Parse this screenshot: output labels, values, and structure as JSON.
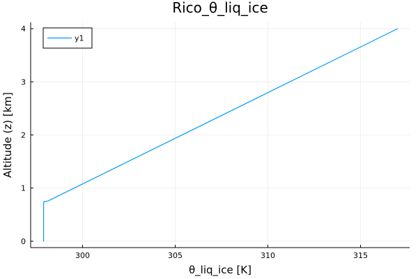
{
  "chart_data": {
    "type": "line",
    "title": "Rico_θ_liq_ice",
    "xlabel": "θ_liq_ice [K]",
    "ylabel": "Altitude (z) [km]",
    "xlim": [
      297.2,
      317.65
    ],
    "ylim": [
      -0.12,
      4.12
    ],
    "xticks": [
      300,
      305,
      310,
      315
    ],
    "xtick_labels": [
      "300",
      "305",
      "310",
      "315"
    ],
    "yticks": [
      0,
      1,
      2,
      3,
      4
    ],
    "ytick_labels": [
      "0",
      "1",
      "2",
      "3",
      "4"
    ],
    "grid": true,
    "legend_position": "top-left",
    "series": [
      {
        "name": "y1",
        "color": "#009af9",
        "x": [
          297.9,
          297.9,
          297.9,
          298.15,
          317.0
        ],
        "y": [
          0.0,
          0.7,
          0.74,
          0.76,
          4.0
        ]
      }
    ]
  }
}
